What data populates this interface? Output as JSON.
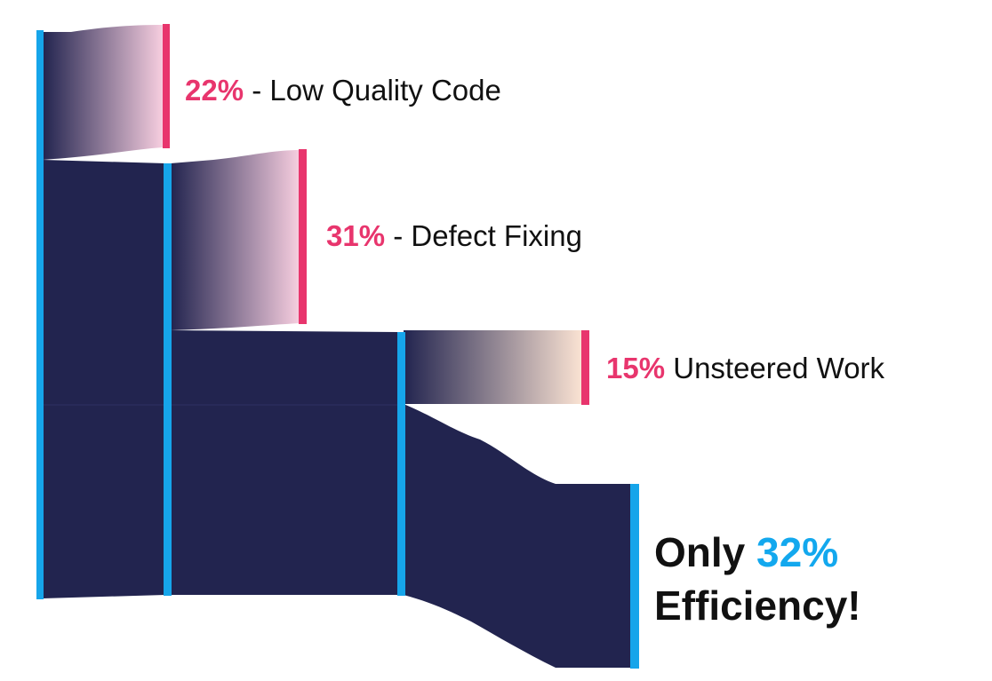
{
  "colors": {
    "flow": "#22244f",
    "node": "#16a5ea",
    "loss_node": "#e8356d",
    "loss_fade_pink": "#f8cfe0",
    "loss_fade_peach": "#fbe3d3",
    "highlight_blue": "#13a8ee",
    "text": "#111111"
  },
  "labels": {
    "low_quality": {
      "pct": "22%",
      "text": " - Low Quality Code"
    },
    "defect_fixing": {
      "pct": "31%",
      "text": " - Defect Fixing"
    },
    "unsteered": {
      "pct": "15%",
      "text": " Unsteered Work"
    },
    "efficiency": {
      "prefix": "Only ",
      "pct": "32%",
      "suffix": "Efficiency!"
    }
  }
}
